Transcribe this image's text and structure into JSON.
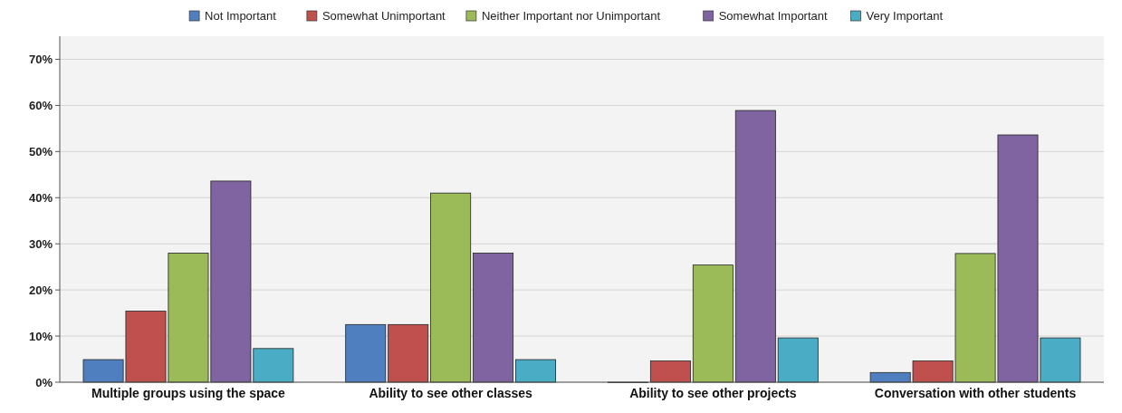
{
  "chart_data": {
    "type": "bar",
    "categories": [
      "Multiple groups using the space",
      "Ability to see other classes",
      "Ability to see other projects",
      "Conversation with other students"
    ],
    "series": [
      {
        "name": "Not Important",
        "color": "#4f7fbf",
        "values": [
          4.9,
          12.5,
          0,
          2.1
        ]
      },
      {
        "name": "Somewhat Unimportant",
        "color": "#c0504d",
        "values": [
          15.4,
          12.5,
          4.6,
          4.6
        ]
      },
      {
        "name": "Neither Important nor Unimportant",
        "color": "#9bbb59",
        "values": [
          28,
          41,
          25.4,
          27.9
        ]
      },
      {
        "name": "Somewhat Important",
        "color": "#8064a2",
        "values": [
          43.6,
          28,
          58.9,
          53.6
        ]
      },
      {
        "name": "Very Important",
        "color": "#4bacc6",
        "values": [
          7.3,
          4.9,
          9.6,
          9.6
        ]
      }
    ],
    "ylim": [
      0,
      75
    ],
    "yticks": [
      {
        "value": 0,
        "label": "0%"
      },
      {
        "value": 10,
        "label": "10%"
      },
      {
        "value": 20,
        "label": "20%"
      },
      {
        "value": 30,
        "label": "30%"
      },
      {
        "value": 40,
        "label": "40%"
      },
      {
        "value": 50,
        "label": "50%"
      },
      {
        "value": 60,
        "label": "60%"
      },
      {
        "value": 70,
        "label": "70%"
      }
    ],
    "grid": "y",
    "legend": "top"
  }
}
